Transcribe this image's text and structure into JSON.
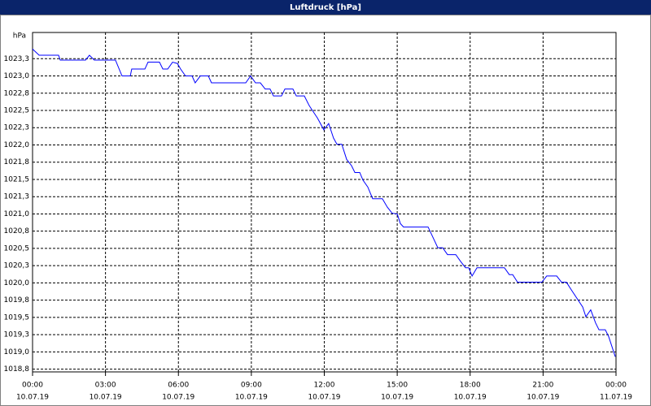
{
  "chart_data": {
    "type": "line",
    "title": "Luftdruck [hPa]",
    "y_label": "hPa",
    "x": [
      0,
      0.27,
      1.07,
      1.14,
      2.18,
      2.34,
      2.54,
      3.41,
      3.68,
      4.02,
      4.08,
      4.62,
      4.75,
      5.22,
      5.36,
      5.56,
      5.76,
      5.96,
      6.09,
      6.29,
      6.56,
      6.69,
      6.9,
      7.23,
      7.36,
      8.77,
      8.97,
      9.17,
      9.37,
      9.57,
      9.77,
      9.91,
      10.24,
      10.38,
      10.71,
      10.85,
      11.18,
      11.38,
      11.72,
      11.98,
      12.18,
      12.38,
      12.52,
      12.72,
      12.92,
      13.12,
      13.26,
      13.46,
      13.59,
      13.79,
      13.99,
      14.39,
      14.59,
      14.79,
      15.0,
      15.13,
      15.26,
      16.27,
      16.47,
      16.67,
      16.87,
      17.07,
      17.41,
      17.61,
      17.81,
      17.94,
      18.08,
      18.28,
      19.41,
      19.61,
      19.75,
      19.95,
      20.95,
      21.15,
      21.56,
      21.76,
      21.96,
      22.16,
      22.63,
      22.76,
      22.96,
      23.16,
      23.3,
      23.56,
      23.7,
      23.97
    ],
    "series": [
      {
        "name": "Luftdruck",
        "color": "#0000ff",
        "values": [
          1023.39,
          1023.3,
          1023.3,
          1023.23,
          1023.23,
          1023.3,
          1023.23,
          1023.23,
          1023.0,
          1023.0,
          1023.1,
          1023.1,
          1023.2,
          1023.2,
          1023.1,
          1023.1,
          1023.2,
          1023.18,
          1023.1,
          1023.0,
          1023.0,
          1022.9,
          1023.0,
          1023.0,
          1022.9,
          1022.9,
          1023.0,
          1022.9,
          1022.9,
          1022.81,
          1022.81,
          1022.71,
          1022.71,
          1022.81,
          1022.81,
          1022.71,
          1022.71,
          1022.57,
          1022.39,
          1022.22,
          1022.31,
          1022.1,
          1022.01,
          1022.01,
          1021.79,
          1021.7,
          1021.6,
          1021.6,
          1021.49,
          1021.39,
          1021.22,
          1021.22,
          1021.1,
          1021.01,
          1021.0,
          1020.86,
          1020.81,
          1020.81,
          1020.66,
          1020.51,
          1020.51,
          1020.41,
          1020.41,
          1020.31,
          1020.22,
          1020.22,
          1020.1,
          1020.22,
          1020.22,
          1020.12,
          1020.12,
          1020.01,
          1020.01,
          1020.1,
          1020.1,
          1020.01,
          1020.01,
          1019.9,
          1019.65,
          1019.51,
          1019.61,
          1019.42,
          1019.32,
          1019.32,
          1019.22,
          1018.93
        ]
      }
    ],
    "xlim": [
      0,
      24
    ],
    "xticks": [
      {
        "value": 0,
        "label": "00:00"
      },
      {
        "value": 3,
        "label": "03:00"
      },
      {
        "value": 6,
        "label": "06:00"
      },
      {
        "value": 9,
        "label": "09:00"
      },
      {
        "value": 12,
        "label": "12:00"
      },
      {
        "value": 15,
        "label": "15:00"
      },
      {
        "value": 18,
        "label": "18:00"
      },
      {
        "value": 21,
        "label": "21:00"
      },
      {
        "value": 24,
        "label": "00:00"
      }
    ],
    "xtick_dates": [
      "10.07.19",
      "10.07.19",
      "10.07.19",
      "10.07.19",
      "10.07.19",
      "10.07.19",
      "10.07.19",
      "10.07.19",
      "11.07.19"
    ],
    "ylim": [
      1018.71,
      1023.63
    ],
    "yticks": [
      {
        "value": 1018.75,
        "label": "1018,8"
      },
      {
        "value": 1019,
        "label": "1019,0"
      },
      {
        "value": 1019.25,
        "label": "1019,3"
      },
      {
        "value": 1019.5,
        "label": "1019,5"
      },
      {
        "value": 1019.75,
        "label": "1019,8"
      },
      {
        "value": 1020,
        "label": "1020,0"
      },
      {
        "value": 1020.25,
        "label": "1020,3"
      },
      {
        "value": 1020.5,
        "label": "1020,5"
      },
      {
        "value": 1020.75,
        "label": "1020,8"
      },
      {
        "value": 1021,
        "label": "1021,0"
      },
      {
        "value": 1021.25,
        "label": "1021,3"
      },
      {
        "value": 1021.5,
        "label": "1021,5"
      },
      {
        "value": 1021.75,
        "label": "1021,8"
      },
      {
        "value": 1022,
        "label": "1022,0"
      },
      {
        "value": 1022.25,
        "label": "1022,3"
      },
      {
        "value": 1022.5,
        "label": "1022,5"
      },
      {
        "value": 1022.75,
        "label": "1022,8"
      },
      {
        "value": 1023,
        "label": "1023,0"
      },
      {
        "value": 1023.25,
        "label": "1023,3"
      }
    ],
    "grid": true
  }
}
